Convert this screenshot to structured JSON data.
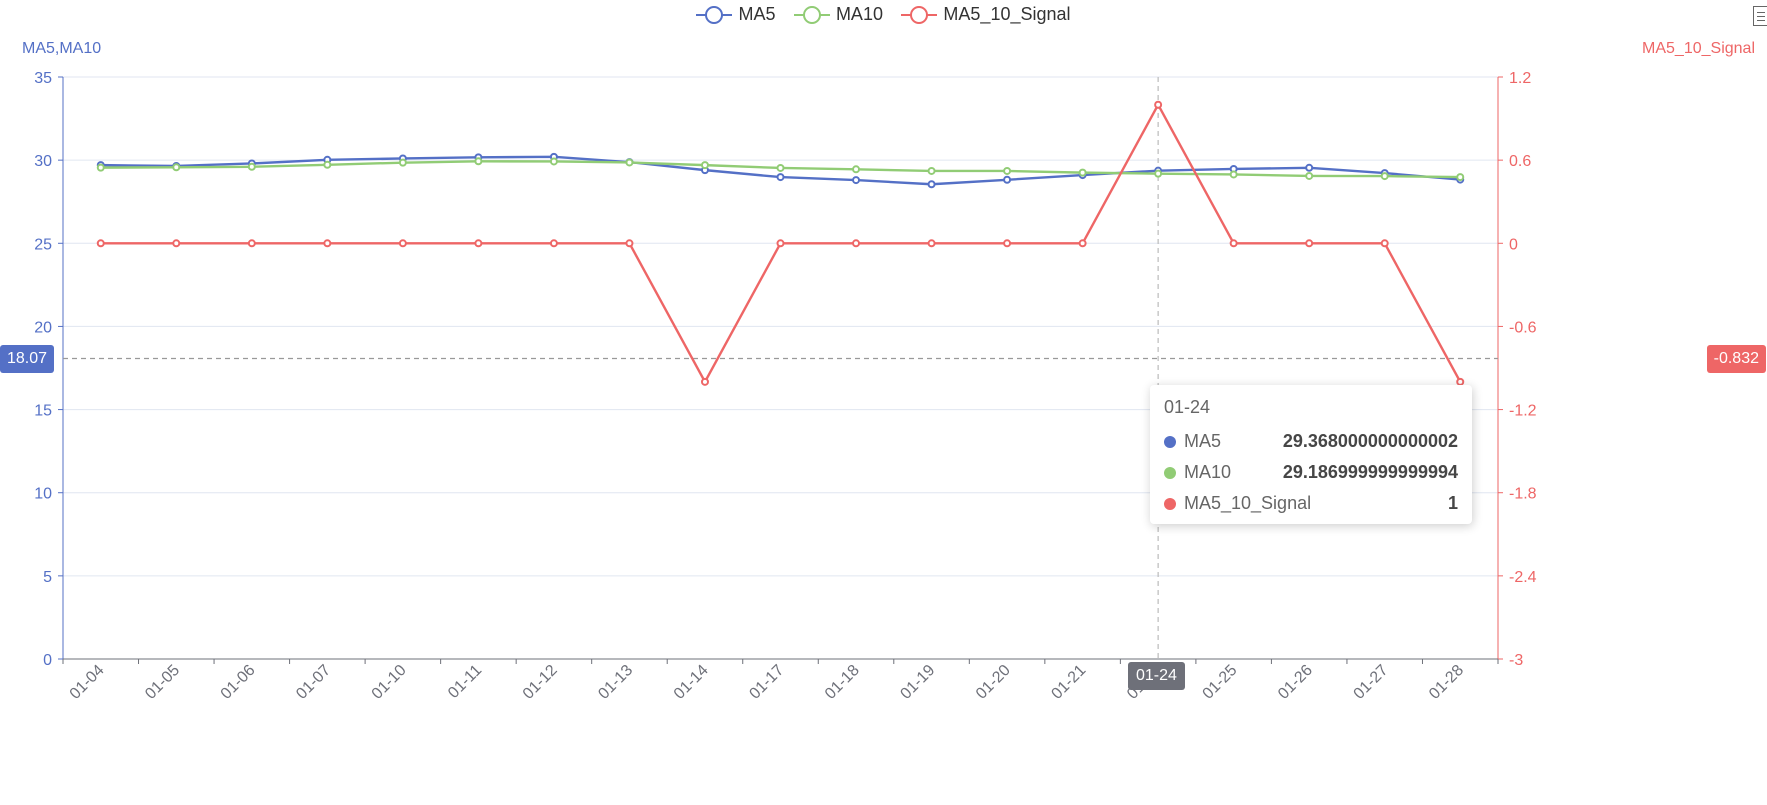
{
  "legend": [
    {
      "name": "MA5",
      "color": "#5470c6"
    },
    {
      "name": "MA10",
      "color": "#91cc75"
    },
    {
      "name": "MA5_10_Signal",
      "color": "#ee6666"
    }
  ],
  "axes": {
    "left_name": "MA5,MA10",
    "right_name": "MA5_10_Signal",
    "left_ticks": [
      "0",
      "5",
      "10",
      "15",
      "20",
      "25",
      "30",
      "35"
    ],
    "right_ticks": [
      "-3",
      "-2.4",
      "-1.8",
      "-1.2",
      "-0.6",
      "0",
      "0.6",
      "1.2"
    ]
  },
  "axis_pointer": {
    "left_value": "18.07",
    "right_value": "-0.832",
    "x_value": "01-24"
  },
  "tooltip": {
    "title": "01-24",
    "rows": [
      {
        "name": "MA5",
        "value": "29.368000000000002",
        "color": "#5470c6"
      },
      {
        "name": "MA10",
        "value": "29.186999999999994",
        "color": "#91cc75"
      },
      {
        "name": "MA5_10_Signal",
        "value": "1",
        "color": "#ee6666"
      }
    ]
  },
  "chart_data": {
    "type": "line",
    "categories": [
      "01-04",
      "01-05",
      "01-06",
      "01-07",
      "01-10",
      "01-11",
      "01-12",
      "01-13",
      "01-14",
      "01-17",
      "01-18",
      "01-19",
      "01-20",
      "01-21",
      "01-24",
      "01-25",
      "01-26",
      "01-27",
      "01-28"
    ],
    "series": [
      {
        "name": "MA5",
        "axis": "left",
        "color": "#5470c6",
        "values": [
          29.7,
          29.65,
          29.8,
          30.02,
          30.1,
          30.17,
          30.2,
          29.88,
          29.4,
          28.98,
          28.8,
          28.55,
          28.82,
          29.1,
          29.368,
          29.47,
          29.54,
          29.22,
          28.83
        ]
      },
      {
        "name": "MA10",
        "axis": "left",
        "color": "#91cc75",
        "values": [
          29.55,
          29.57,
          29.6,
          29.72,
          29.85,
          29.93,
          29.92,
          29.86,
          29.7,
          29.53,
          29.45,
          29.35,
          29.35,
          29.25,
          29.187,
          29.14,
          29.05,
          29.04,
          28.98
        ]
      },
      {
        "name": "MA5_10_Signal",
        "axis": "right",
        "color": "#ee6666",
        "values": [
          0,
          0,
          0,
          0,
          0,
          0,
          0,
          0,
          -1,
          0,
          0,
          0,
          0,
          0,
          1,
          0,
          0,
          0,
          -1
        ]
      }
    ],
    "ylim_left": [
      0,
      35
    ],
    "ylim_right": [
      -3,
      1.2
    ],
    "grid": true,
    "legend_position": "top-center"
  }
}
